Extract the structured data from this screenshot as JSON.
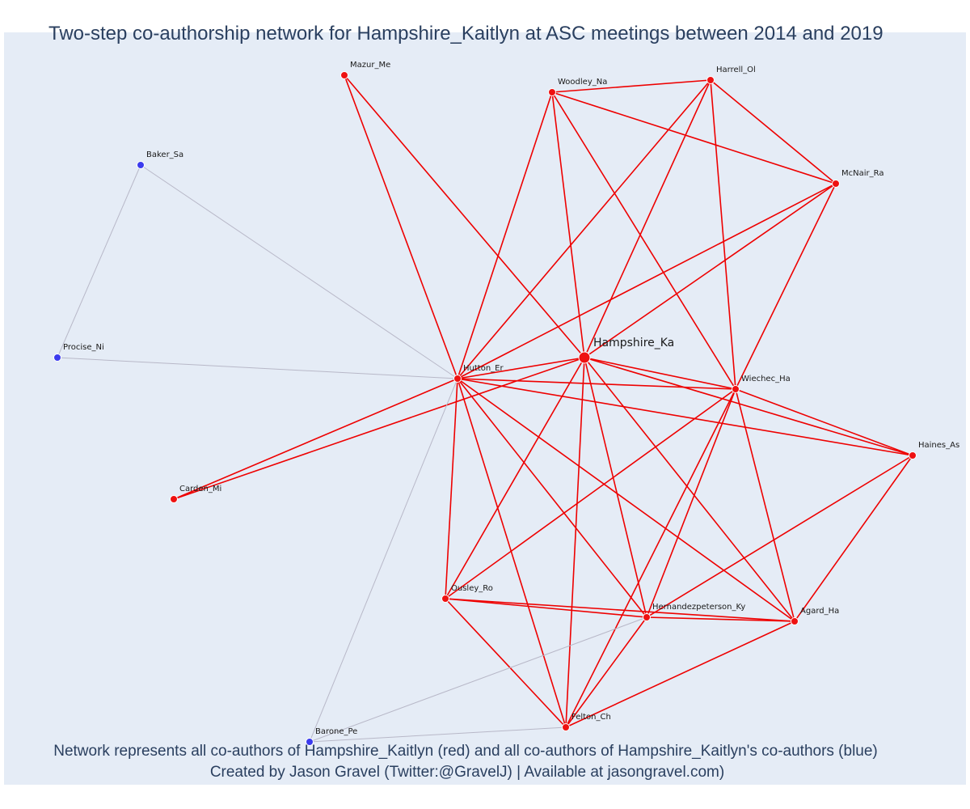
{
  "title": "Two-step co-authorship network for Hampshire_Kaitlyn at ASC meetings between 2014 and 2019",
  "captions": [
    "Network represents all co-authors of Hampshire_Kaitlyn (red) and all co-authors of Hampshire_Kaitlyn's co-authors (blue)",
    "Created by Jason Gravel (Twitter:@GravelJ) | Available at jasongravel.com)"
  ],
  "colors": {
    "direct": "#ee1111",
    "direct_edge": "#ee0000",
    "indirect": "#3b3bee",
    "indirect_edge": "#b8b8c8",
    "background": "#e5ecf6"
  },
  "nodes": [
    {
      "id": "Hampshire_Ka",
      "group": "focal"
    },
    {
      "id": "Hutton_Er",
      "group": "direct"
    },
    {
      "id": "Mazur_Me",
      "group": "direct"
    },
    {
      "id": "Woodley_Na",
      "group": "direct"
    },
    {
      "id": "Harrell_Ol",
      "group": "direct"
    },
    {
      "id": "McNair_Ra",
      "group": "direct"
    },
    {
      "id": "Wiechec_Ha",
      "group": "direct"
    },
    {
      "id": "Haines_As",
      "group": "direct"
    },
    {
      "id": "Carden_Mi",
      "group": "direct"
    },
    {
      "id": "Ousley_Ro",
      "group": "direct"
    },
    {
      "id": "Hernandezpeterson_Ky",
      "group": "direct"
    },
    {
      "id": "Agard_Ha",
      "group": "direct"
    },
    {
      "id": "Felton_Ch",
      "group": "direct"
    },
    {
      "id": "Baker_Sa",
      "group": "indirect"
    },
    {
      "id": "Procise_Ni",
      "group": "indirect"
    },
    {
      "id": "Barone_Pe",
      "group": "indirect"
    }
  ],
  "edges": [
    [
      "Hampshire_Ka",
      "Hutton_Er"
    ],
    [
      "Hampshire_Ka",
      "Mazur_Me"
    ],
    [
      "Hampshire_Ka",
      "Woodley_Na"
    ],
    [
      "Hampshire_Ka",
      "Harrell_Ol"
    ],
    [
      "Hampshire_Ka",
      "McNair_Ra"
    ],
    [
      "Hampshire_Ka",
      "Wiechec_Ha"
    ],
    [
      "Hampshire_Ka",
      "Haines_As"
    ],
    [
      "Hampshire_Ka",
      "Carden_Mi"
    ],
    [
      "Hampshire_Ka",
      "Ousley_Ro"
    ],
    [
      "Hampshire_Ka",
      "Hernandezpeterson_Ky"
    ],
    [
      "Hampshire_Ka",
      "Agard_Ha"
    ],
    [
      "Hampshire_Ka",
      "Felton_Ch"
    ],
    [
      "Hutton_Er",
      "Mazur_Me"
    ],
    [
      "Hutton_Er",
      "Woodley_Na"
    ],
    [
      "Hutton_Er",
      "Harrell_Ol"
    ],
    [
      "Hutton_Er",
      "McNair_Ra"
    ],
    [
      "Hutton_Er",
      "Wiechec_Ha"
    ],
    [
      "Hutton_Er",
      "Haines_As"
    ],
    [
      "Hutton_Er",
      "Carden_Mi"
    ],
    [
      "Hutton_Er",
      "Ousley_Ro"
    ],
    [
      "Hutton_Er",
      "Hernandezpeterson_Ky"
    ],
    [
      "Hutton_Er",
      "Agard_Ha"
    ],
    [
      "Hutton_Er",
      "Felton_Ch"
    ],
    [
      "Woodley_Na",
      "Harrell_Ol"
    ],
    [
      "Woodley_Na",
      "McNair_Ra"
    ],
    [
      "Woodley_Na",
      "Wiechec_Ha"
    ],
    [
      "Harrell_Ol",
      "McNair_Ra"
    ],
    [
      "Harrell_Ol",
      "Wiechec_Ha"
    ],
    [
      "McNair_Ra",
      "Wiechec_Ha"
    ],
    [
      "Wiechec_Ha",
      "Haines_As"
    ],
    [
      "Wiechec_Ha",
      "Ousley_Ro"
    ],
    [
      "Wiechec_Ha",
      "Hernandezpeterson_Ky"
    ],
    [
      "Wiechec_Ha",
      "Agard_Ha"
    ],
    [
      "Wiechec_Ha",
      "Felton_Ch"
    ],
    [
      "Haines_As",
      "Hernandezpeterson_Ky"
    ],
    [
      "Haines_As",
      "Agard_Ha"
    ],
    [
      "Ousley_Ro",
      "Hernandezpeterson_Ky"
    ],
    [
      "Ousley_Ro",
      "Agard_Ha"
    ],
    [
      "Ousley_Ro",
      "Felton_Ch"
    ],
    [
      "Hernandezpeterson_Ky",
      "Agard_Ha"
    ],
    [
      "Hernandezpeterson_Ky",
      "Felton_Ch"
    ],
    [
      "Agard_Ha",
      "Felton_Ch"
    ],
    [
      "Baker_Sa",
      "Hutton_Er"
    ],
    [
      "Baker_Sa",
      "Procise_Ni"
    ],
    [
      "Procise_Ni",
      "Hutton_Er"
    ],
    [
      "Barone_Pe",
      "Hutton_Er"
    ],
    [
      "Barone_Pe",
      "Hernandezpeterson_Ky"
    ],
    [
      "Barone_Pe",
      "Felton_Ch"
    ]
  ]
}
